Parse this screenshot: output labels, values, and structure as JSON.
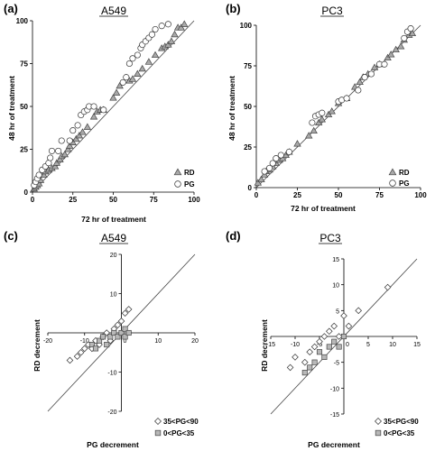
{
  "chart_data": [
    {
      "type": "scatter",
      "panel_label": "(a)",
      "title": "A549",
      "xlabel": "72 hr of treatment",
      "ylabel": "48 hr of treatment",
      "xlim": [
        0,
        100
      ],
      "ylim": [
        0,
        100
      ],
      "xticks": [
        "0",
        "25",
        "50",
        "75",
        "100"
      ],
      "yticks": [
        "0",
        "25",
        "50",
        "75",
        "100"
      ],
      "diagonal": true,
      "legend_position": "bottom-right",
      "series": [
        {
          "name": "RD",
          "marker": "triangle",
          "points": [
            [
              1,
              2
            ],
            [
              2,
              3
            ],
            [
              3,
              4
            ],
            [
              4,
              5
            ],
            [
              5,
              7
            ],
            [
              7,
              10
            ],
            [
              8,
              12
            ],
            [
              10,
              13
            ],
            [
              12,
              14
            ],
            [
              14,
              15
            ],
            [
              15,
              17
            ],
            [
              17,
              19
            ],
            [
              18,
              21
            ],
            [
              20,
              22
            ],
            [
              22,
              25
            ],
            [
              23,
              27
            ],
            [
              25,
              29
            ],
            [
              27,
              31
            ],
            [
              29,
              33
            ],
            [
              31,
              35
            ],
            [
              34,
              38
            ],
            [
              38,
              44
            ],
            [
              40,
              47
            ],
            [
              42,
              48
            ],
            [
              44,
              48
            ],
            [
              50,
              55
            ],
            [
              52,
              58
            ],
            [
              54,
              62
            ],
            [
              60,
              65
            ],
            [
              62,
              66
            ],
            [
              65,
              69
            ],
            [
              68,
              72
            ],
            [
              72,
              76
            ],
            [
              76,
              80
            ],
            [
              80,
              84
            ],
            [
              82,
              85
            ],
            [
              84,
              86
            ],
            [
              86,
              88
            ],
            [
              88,
              92
            ],
            [
              90,
              96
            ],
            [
              92,
              96
            ],
            [
              94,
              98
            ]
          ]
        },
        {
          "name": "PG",
          "marker": "circle",
          "points": [
            [
              1,
              4
            ],
            [
              2,
              6
            ],
            [
              3,
              8
            ],
            [
              4,
              10
            ],
            [
              6,
              13
            ],
            [
              8,
              15
            ],
            [
              10,
              17
            ],
            [
              11,
              20
            ],
            [
              12,
              24
            ],
            [
              16,
              24
            ],
            [
              18,
              30
            ],
            [
              23,
              30
            ],
            [
              25,
              36
            ],
            [
              28,
              39
            ],
            [
              30,
              45
            ],
            [
              32,
              47
            ],
            [
              34,
              48
            ],
            [
              35,
              50
            ],
            [
              38,
              50
            ],
            [
              44,
              48
            ],
            [
              56,
              64
            ],
            [
              58,
              67
            ],
            [
              60,
              75
            ],
            [
              62,
              78
            ],
            [
              65,
              80
            ],
            [
              67,
              84
            ],
            [
              68,
              86
            ],
            [
              70,
              88
            ],
            [
              72,
              90
            ],
            [
              74,
              92
            ],
            [
              76,
              95
            ],
            [
              80,
              97
            ],
            [
              84,
              98
            ]
          ]
        }
      ]
    },
    {
      "type": "scatter",
      "panel_label": "(b)",
      "title": "PC3",
      "xlabel": "72 hr of treatment",
      "ylabel": "48 hr of treatment",
      "xlim": [
        0,
        100
      ],
      "ylim": [
        0,
        100
      ],
      "xticks": [
        "0",
        "25",
        "50",
        "75",
        "100"
      ],
      "yticks": [
        "0",
        "25",
        "50",
        "75",
        "100"
      ],
      "diagonal": true,
      "legend_position": "bottom-right",
      "series": [
        {
          "name": "RD",
          "marker": "triangle",
          "points": [
            [
              1,
              3
            ],
            [
              3,
              5
            ],
            [
              5,
              8
            ],
            [
              6,
              10
            ],
            [
              8,
              11
            ],
            [
              10,
              13
            ],
            [
              12,
              15
            ],
            [
              14,
              17
            ],
            [
              16,
              18
            ],
            [
              18,
              20
            ],
            [
              20,
              22
            ],
            [
              25,
              27
            ],
            [
              32,
              32
            ],
            [
              35,
              35
            ],
            [
              38,
              40
            ],
            [
              40,
              42
            ],
            [
              44,
              45
            ],
            [
              46,
              47
            ],
            [
              50,
              52
            ],
            [
              55,
              55
            ],
            [
              60,
              62
            ],
            [
              63,
              65
            ],
            [
              65,
              68
            ],
            [
              68,
              70
            ],
            [
              72,
              74
            ],
            [
              75,
              76
            ],
            [
              80,
              80
            ],
            [
              82,
              82
            ],
            [
              85,
              85
            ],
            [
              88,
              87
            ],
            [
              90,
              91
            ],
            [
              93,
              94
            ],
            [
              95,
              95
            ]
          ]
        },
        {
          "name": "PG",
          "marker": "circle",
          "points": [
            [
              5,
              10
            ],
            [
              8,
              12
            ],
            [
              10,
              15
            ],
            [
              12,
              18
            ],
            [
              15,
              20
            ],
            [
              20,
              22
            ],
            [
              34,
              40
            ],
            [
              36,
              44
            ],
            [
              38,
              45
            ],
            [
              40,
              46
            ],
            [
              50,
              53
            ],
            [
              52,
              54
            ],
            [
              55,
              55
            ],
            [
              62,
              60
            ],
            [
              66,
              68
            ],
            [
              70,
              70
            ],
            [
              75,
              76
            ],
            [
              78,
              76
            ],
            [
              90,
              92
            ],
            [
              92,
              96
            ],
            [
              94,
              98
            ]
          ]
        }
      ]
    },
    {
      "type": "scatter",
      "panel_label": "(c)",
      "title": "A549",
      "xlabel": "PG decrement",
      "ylabel": "RD decrement",
      "xlim": [
        -20,
        20
      ],
      "ylim": [
        -20,
        20
      ],
      "xticks": [
        "-20",
        "-10",
        "0",
        "10",
        "20"
      ],
      "yticks": [
        "-20",
        "-10",
        "0",
        "10",
        "20"
      ],
      "diagonal": true,
      "legend_position": "bottom-right",
      "series": [
        {
          "name": "35<PG<90",
          "marker": "diamond",
          "points": [
            [
              -14,
              -7
            ],
            [
              -12,
              -6
            ],
            [
              -11,
              -5
            ],
            [
              -10,
              -4
            ],
            [
              -9,
              -3
            ],
            [
              -8,
              -4
            ],
            [
              -7,
              -2
            ],
            [
              -6,
              -3
            ],
            [
              -5,
              -1
            ],
            [
              -4,
              0
            ],
            [
              -3,
              -2
            ],
            [
              -2,
              1
            ],
            [
              -1,
              2
            ],
            [
              0,
              3
            ],
            [
              1,
              5
            ],
            [
              2,
              6
            ]
          ]
        },
        {
          "name": "0<PG<35",
          "marker": "square",
          "points": [
            [
              -8,
              -3
            ],
            [
              -7,
              -4
            ],
            [
              -6,
              -2
            ],
            [
              -5,
              -1
            ],
            [
              -4,
              -3
            ],
            [
              -3,
              -1
            ],
            [
              -2,
              0
            ],
            [
              -1,
              -1
            ],
            [
              0,
              0
            ],
            [
              1,
              1
            ],
            [
              1,
              -1
            ],
            [
              2,
              0
            ]
          ]
        }
      ]
    },
    {
      "type": "scatter",
      "panel_label": "(d)",
      "title": "PC3",
      "xlabel": "PG decrement",
      "ylabel": "RD decrement",
      "xlim": [
        -15,
        15
      ],
      "ylim": [
        -15,
        15
      ],
      "xticks": [
        "-15",
        "-10",
        "-5",
        "0",
        "5",
        "10",
        "15"
      ],
      "yticks": [
        "-15",
        "-10",
        "-5",
        "0",
        "5",
        "10",
        "15"
      ],
      "diagonal": true,
      "legend_position": "bottom-right",
      "series": [
        {
          "name": "35<PG<90",
          "marker": "diamond",
          "points": [
            [
              -11,
              -6
            ],
            [
              -10,
              -4
            ],
            [
              -8,
              -5
            ],
            [
              -7,
              -3
            ],
            [
              -6,
              -2
            ],
            [
              -5,
              -1
            ],
            [
              -4,
              0
            ],
            [
              -3,
              1
            ],
            [
              -2,
              2
            ],
            [
              -1,
              0
            ],
            [
              0,
              4
            ],
            [
              1,
              2
            ],
            [
              3,
              5
            ],
            [
              9,
              9.5
            ]
          ]
        },
        {
          "name": "0<PG<35",
          "marker": "square",
          "points": [
            [
              -8,
              -7
            ],
            [
              -7,
              -6
            ],
            [
              -6,
              -5
            ],
            [
              -5,
              -3
            ],
            [
              -4,
              -4
            ],
            [
              -3,
              -2
            ],
            [
              -2,
              -1
            ],
            [
              -1,
              -2
            ],
            [
              0,
              0
            ]
          ]
        }
      ]
    }
  ]
}
